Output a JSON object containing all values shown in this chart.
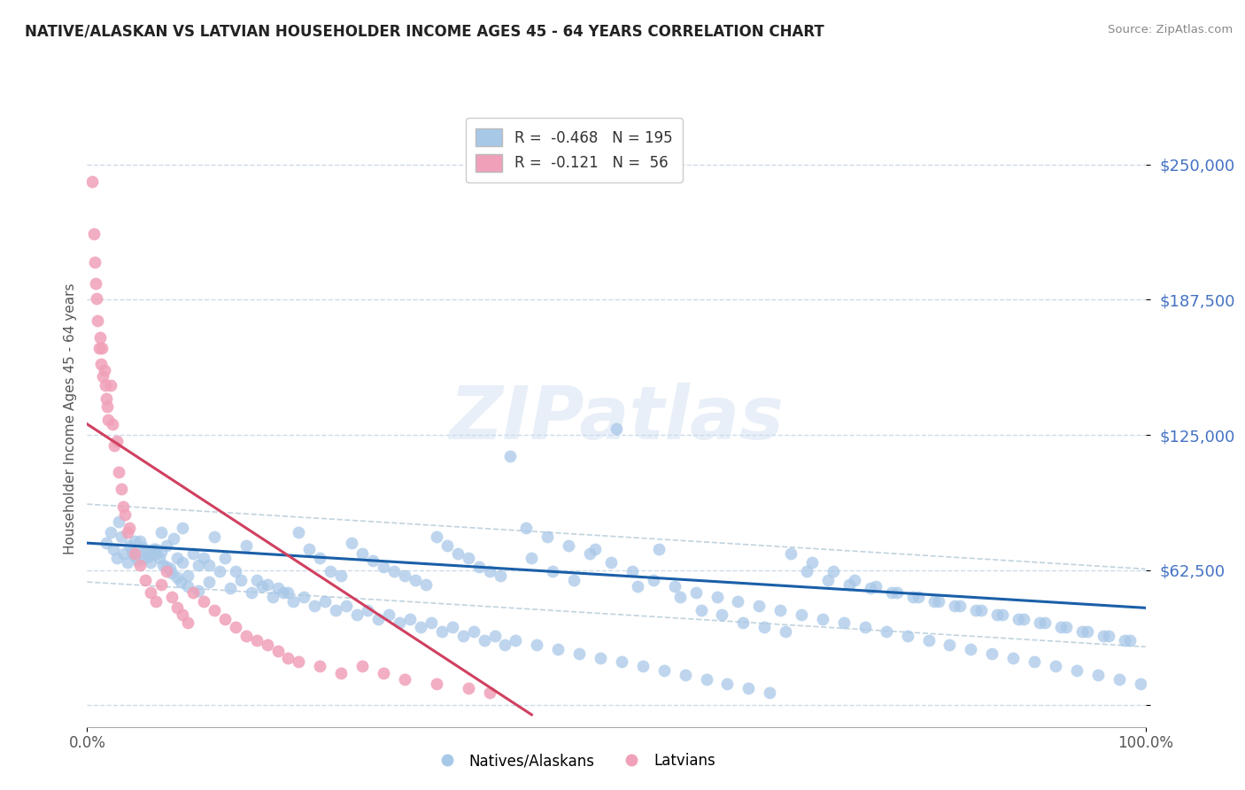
{
  "title": "NATIVE/ALASKAN VS LATVIAN HOUSEHOLDER INCOME AGES 45 - 64 YEARS CORRELATION CHART",
  "source": "Source: ZipAtlas.com",
  "ylabel": "Householder Income Ages 45 - 64 years",
  "watermark": "ZIPatlas",
  "xlim": [
    0.0,
    1.0
  ],
  "ylim": [
    -10000,
    275000
  ],
  "yticks": [
    0,
    62500,
    125000,
    187500,
    250000
  ],
  "ytick_labels": [
    "",
    "$62,500",
    "$125,000",
    "$187,500",
    "$250,000"
  ],
  "xtick_labels": [
    "0.0%",
    "100.0%"
  ],
  "blue_color": "#a8c8e8",
  "pink_color": "#f0a0b8",
  "blue_line_color": "#1a5fa8",
  "pink_line_color": "#d04060",
  "dashed_line_color": "#b0c8d8",
  "native_x": [
    0.018,
    0.022,
    0.025,
    0.028,
    0.03,
    0.032,
    0.035,
    0.038,
    0.04,
    0.042,
    0.045,
    0.048,
    0.05,
    0.052,
    0.055,
    0.058,
    0.06,
    0.062,
    0.065,
    0.068,
    0.07,
    0.072,
    0.075,
    0.078,
    0.08,
    0.082,
    0.085,
    0.088,
    0.09,
    0.095,
    0.1,
    0.105,
    0.11,
    0.115,
    0.12,
    0.13,
    0.14,
    0.15,
    0.16,
    0.17,
    0.18,
    0.19,
    0.2,
    0.21,
    0.22,
    0.23,
    0.24,
    0.25,
    0.26,
    0.27,
    0.28,
    0.29,
    0.3,
    0.31,
    0.32,
    0.33,
    0.34,
    0.35,
    0.36,
    0.37,
    0.38,
    0.39,
    0.4,
    0.42,
    0.44,
    0.46,
    0.48,
    0.5,
    0.52,
    0.54,
    0.56,
    0.58,
    0.6,
    0.62,
    0.64,
    0.66,
    0.68,
    0.7,
    0.72,
    0.74,
    0.76,
    0.78,
    0.8,
    0.82,
    0.84,
    0.86,
    0.88,
    0.9,
    0.92,
    0.94,
    0.96,
    0.98,
    0.055,
    0.075,
    0.095,
    0.115,
    0.135,
    0.155,
    0.175,
    0.195,
    0.215,
    0.235,
    0.255,
    0.275,
    0.295,
    0.315,
    0.335,
    0.355,
    0.375,
    0.395,
    0.415,
    0.435,
    0.455,
    0.475,
    0.495,
    0.515,
    0.535,
    0.555,
    0.575,
    0.595,
    0.615,
    0.635,
    0.655,
    0.675,
    0.695,
    0.715,
    0.735,
    0.755,
    0.775,
    0.795,
    0.815,
    0.835,
    0.855,
    0.875,
    0.895,
    0.915,
    0.935,
    0.955,
    0.975,
    0.995,
    0.065,
    0.085,
    0.105,
    0.125,
    0.145,
    0.165,
    0.185,
    0.205,
    0.225,
    0.245,
    0.265,
    0.285,
    0.305,
    0.325,
    0.345,
    0.365,
    0.385,
    0.405,
    0.425,
    0.445,
    0.465,
    0.485,
    0.505,
    0.525,
    0.545,
    0.565,
    0.585,
    0.605,
    0.625,
    0.645,
    0.665,
    0.685,
    0.705,
    0.725,
    0.745,
    0.765,
    0.785,
    0.805,
    0.825,
    0.845,
    0.865,
    0.885,
    0.905,
    0.925,
    0.945,
    0.965,
    0.985,
    0.045,
    0.07,
    0.09
  ],
  "native_y": [
    75000,
    80000,
    72000,
    68000,
    85000,
    78000,
    70000,
    66000,
    74000,
    71000,
    69000,
    67000,
    76000,
    73000,
    71000,
    69000,
    66000,
    72000,
    70000,
    68000,
    80000,
    65000,
    74000,
    63000,
    61000,
    77000,
    59000,
    57000,
    82000,
    55000,
    70000,
    53000,
    68000,
    65000,
    78000,
    68000,
    62000,
    74000,
    58000,
    56000,
    54000,
    52000,
    80000,
    72000,
    68000,
    62000,
    60000,
    75000,
    70000,
    67000,
    64000,
    62000,
    60000,
    58000,
    56000,
    78000,
    74000,
    70000,
    68000,
    64000,
    62000,
    60000,
    115000,
    68000,
    62000,
    58000,
    72000,
    128000,
    55000,
    72000,
    50000,
    44000,
    42000,
    38000,
    36000,
    34000,
    62000,
    58000,
    56000,
    54000,
    52000,
    50000,
    48000,
    46000,
    44000,
    42000,
    40000,
    38000,
    36000,
    34000,
    32000,
    30000,
    68000,
    64000,
    60000,
    57000,
    54000,
    52000,
    50000,
    48000,
    46000,
    44000,
    42000,
    40000,
    38000,
    36000,
    34000,
    32000,
    30000,
    28000,
    82000,
    78000,
    74000,
    70000,
    66000,
    62000,
    58000,
    55000,
    52000,
    50000,
    48000,
    46000,
    44000,
    42000,
    40000,
    38000,
    36000,
    34000,
    32000,
    30000,
    28000,
    26000,
    24000,
    22000,
    20000,
    18000,
    16000,
    14000,
    12000,
    10000,
    72000,
    68000,
    65000,
    62000,
    58000,
    55000,
    52000,
    50000,
    48000,
    46000,
    44000,
    42000,
    40000,
    38000,
    36000,
    34000,
    32000,
    30000,
    28000,
    26000,
    24000,
    22000,
    20000,
    18000,
    16000,
    14000,
    12000,
    10000,
    8000,
    6000,
    70000,
    66000,
    62000,
    58000,
    55000,
    52000,
    50000,
    48000,
    46000,
    44000,
    42000,
    40000,
    38000,
    36000,
    34000,
    32000,
    30000,
    76000,
    71000,
    66000
  ],
  "latvian_x": [
    0.005,
    0.006,
    0.007,
    0.008,
    0.009,
    0.01,
    0.011,
    0.012,
    0.013,
    0.014,
    0.015,
    0.016,
    0.017,
    0.018,
    0.019,
    0.02,
    0.022,
    0.024,
    0.026,
    0.028,
    0.03,
    0.032,
    0.034,
    0.036,
    0.038,
    0.04,
    0.045,
    0.05,
    0.055,
    0.06,
    0.065,
    0.07,
    0.075,
    0.08,
    0.085,
    0.09,
    0.095,
    0.1,
    0.11,
    0.12,
    0.13,
    0.14,
    0.15,
    0.16,
    0.17,
    0.18,
    0.19,
    0.2,
    0.22,
    0.24,
    0.26,
    0.28,
    0.3,
    0.33,
    0.36,
    0.38
  ],
  "latvian_y": [
    242000,
    218000,
    205000,
    195000,
    188000,
    178000,
    165000,
    170000,
    158000,
    165000,
    152000,
    155000,
    148000,
    142000,
    138000,
    132000,
    148000,
    130000,
    120000,
    122000,
    108000,
    100000,
    92000,
    88000,
    80000,
    82000,
    70000,
    65000,
    58000,
    52000,
    48000,
    56000,
    62000,
    50000,
    45000,
    42000,
    38000,
    52000,
    48000,
    44000,
    40000,
    36000,
    32000,
    30000,
    28000,
    25000,
    22000,
    20000,
    18000,
    15000,
    18000,
    15000,
    12000,
    10000,
    8000,
    6000
  ]
}
